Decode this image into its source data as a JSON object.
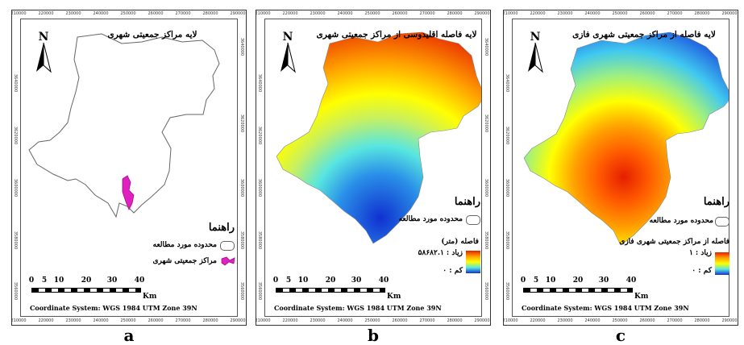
{
  "panels": [
    {
      "id": "a",
      "caption": "a",
      "title": "لایه مراکز جمعیتی شهری",
      "legend_head": "راهنما",
      "legend_items": [
        "محدوده مورد مطالعه",
        "مراکز جمعیتی شهری"
      ],
      "scale_labels": [
        "0",
        "5",
        "10",
        "20",
        "30",
        "40"
      ],
      "km": "Km",
      "coord": "Coordinate System: WGS 1984 UTM Zone 39N"
    },
    {
      "id": "b",
      "caption": "b",
      "title": "لایه فاصله اقلیدوسی از مراکز جمعیتی شهری",
      "legend_head": "راهنما",
      "legend_items": [
        "محدوده مورد مطالعه",
        "فاصله (متر)",
        "زیاد : ۵۸۶۸۲.۱",
        "کم : ۰"
      ],
      "scale_labels": [
        "0",
        "5",
        "10",
        "20",
        "30",
        "40"
      ],
      "km": "Km",
      "coord": "Coordinate System: WGS 1984 UTM Zone 39N"
    },
    {
      "id": "c",
      "caption": "c",
      "title": "لایه فاصله از مراکز جمعیتی شهری فازی",
      "legend_head": "راهنما",
      "legend_items": [
        "محدوده مورد مطالعه",
        "فاصله از مراکز جمعیتی شهری فازی",
        "زیاد : ۱",
        "کم : ۰"
      ],
      "scale_labels": [
        "0",
        "5",
        "10",
        "20",
        "30",
        "40"
      ],
      "km": "Km",
      "coord": "Coordinate System: WGS 1984 UTM Zone 39N"
    }
  ],
  "north_label": "N",
  "x_ticks": [
    "210000",
    "220000",
    "230000",
    "240000",
    "250000",
    "260000",
    "270000",
    "280000",
    "290000"
  ],
  "y_ticks": [
    "3640000",
    "3620000",
    "3600000",
    "3580000",
    "3560000"
  ],
  "colors": {
    "urban_centers": "#e020c0",
    "boundary": "#666666",
    "ramp_high": "#e61f00",
    "ramp_mid": "#ffff00",
    "ramp_low": "#1030d0"
  }
}
